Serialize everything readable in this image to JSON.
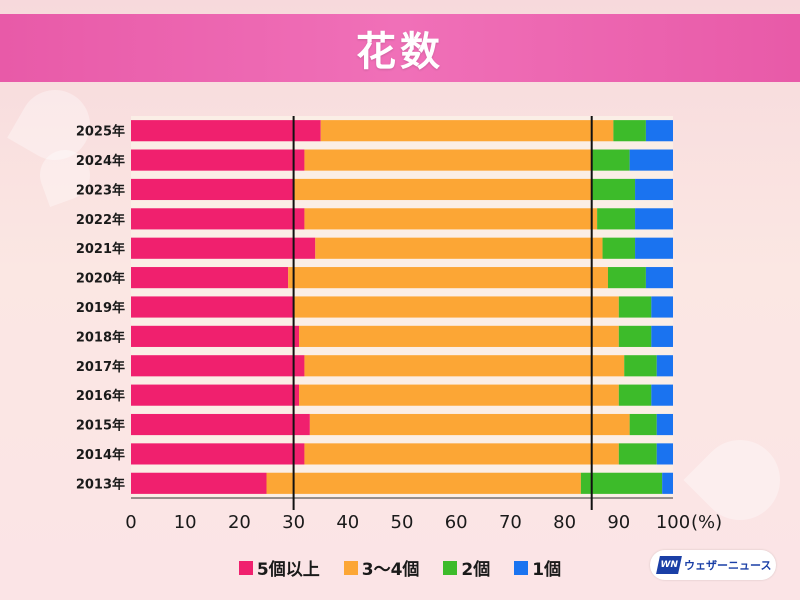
{
  "header": {
    "title": "花数"
  },
  "colors": {
    "five_plus": "#f0206e",
    "three_four": "#fca635",
    "two": "#3dbb2a",
    "one": "#1a73f0",
    "header_bg": "#ec66b0"
  },
  "legend": [
    {
      "label": "5個以上",
      "color": "#f0206e"
    },
    {
      "label": "3〜4個",
      "color": "#fca635"
    },
    {
      "label": "2個",
      "color": "#3dbb2a"
    },
    {
      "label": "1個",
      "color": "#1a73f0"
    }
  ],
  "logo": {
    "text": "ウェザーニュース",
    "mark": "WN"
  },
  "chart_data": {
    "type": "bar",
    "orientation": "horizontal",
    "stacked": true,
    "title": "花数",
    "categories": [
      "2025年",
      "2024年",
      "2023年",
      "2022年",
      "2021年",
      "2020年",
      "2019年",
      "2018年",
      "2017年",
      "2016年",
      "2015年",
      "2014年",
      "2013年"
    ],
    "series": [
      {
        "name": "5個以上",
        "values": [
          35,
          32,
          30,
          32,
          34,
          29,
          30,
          31,
          32,
          31,
          33,
          32,
          25
        ]
      },
      {
        "name": "3〜4個",
        "values": [
          54,
          53,
          55,
          54,
          53,
          59,
          60,
          59,
          59,
          59,
          59,
          58,
          58
        ]
      },
      {
        "name": "2個",
        "values": [
          6,
          7,
          8,
          7,
          6,
          7,
          6,
          6,
          6,
          6,
          5,
          7,
          15
        ]
      },
      {
        "name": "1個",
        "values": [
          5,
          8,
          7,
          7,
          7,
          5,
          4,
          4,
          3,
          4,
          3,
          3,
          2
        ]
      }
    ],
    "xlim": [
      0,
      100
    ],
    "xticks": [
      0,
      10,
      20,
      30,
      40,
      50,
      60,
      70,
      80,
      90,
      100
    ],
    "xunit": "(%)",
    "reference_lines": [
      30,
      85
    ]
  }
}
